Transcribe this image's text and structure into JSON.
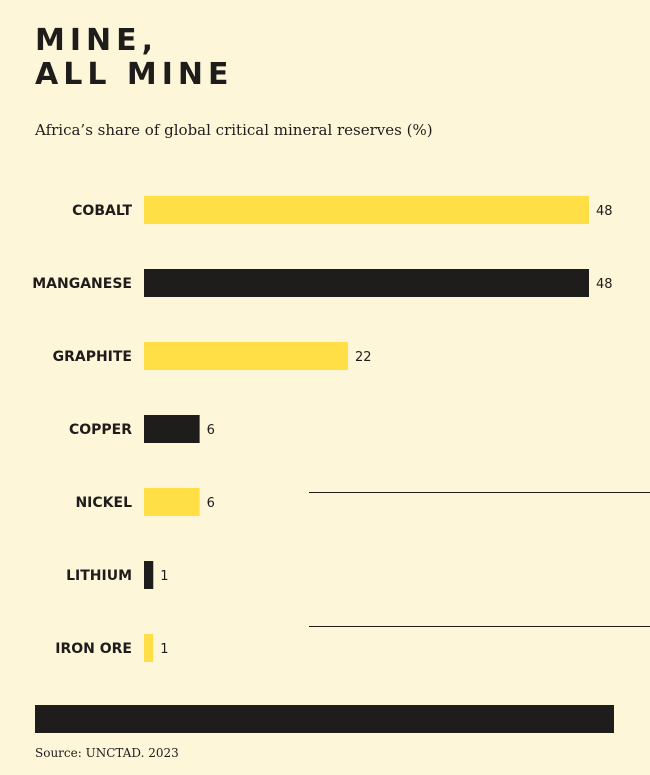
{
  "header": {
    "title_line1": "MINE,",
    "title_line2": "ALL MINE",
    "subtitle": "Africa’s share of global critical mineral reserves (%)"
  },
  "colors": {
    "background": "#fdf6d9",
    "yellow": "#ffdf45",
    "black": "#1f1c1c"
  },
  "chart_data": {
    "type": "bar",
    "orientation": "horizontal",
    "title": "MINE, ALL MINE",
    "subtitle": "Africa’s share of global critical mineral reserves (%)",
    "categories": [
      "COBALT",
      "MANGANESE",
      "GRAPHITE",
      "COPPER",
      "NICKEL",
      "LITHIUM",
      "IRON ORE"
    ],
    "values": [
      48,
      48,
      22,
      6,
      6,
      1,
      1
    ],
    "bar_colors": [
      "#ffdf45",
      "#1f1c1c",
      "#ffdf45",
      "#1f1c1c",
      "#ffdf45",
      "#1f1c1c",
      "#ffdf45"
    ],
    "xlim": [
      0,
      48
    ],
    "grid": false,
    "legend": "none",
    "data_labels": true
  },
  "footer": {
    "source": "Source: UNCTAD. 2023"
  }
}
